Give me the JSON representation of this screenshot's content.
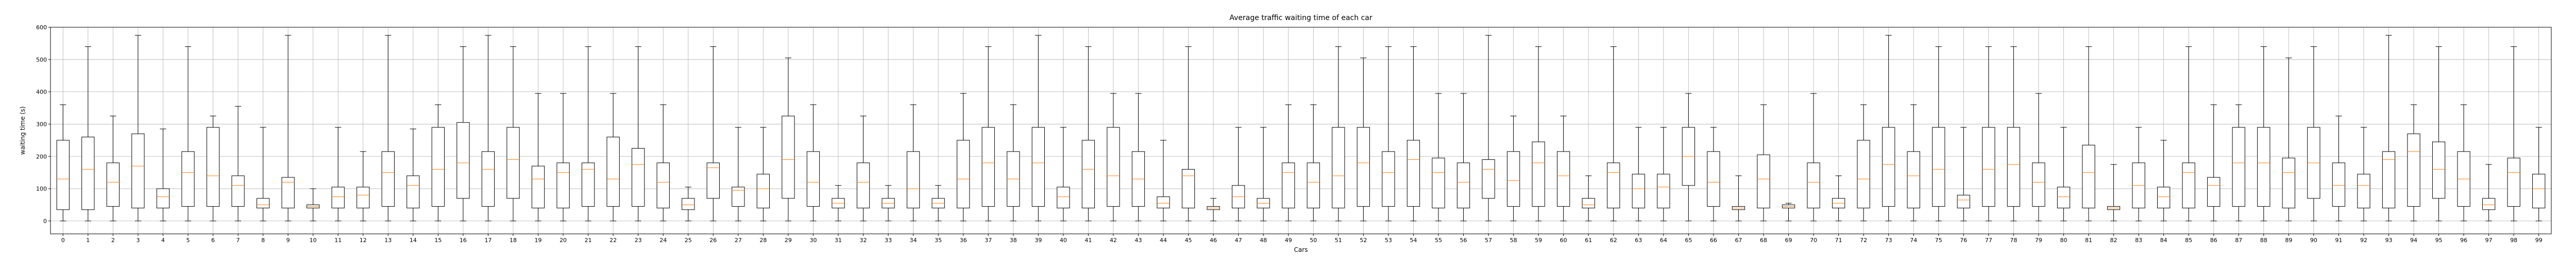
{
  "chart_data": {
    "type": "box",
    "title": "Average traffic waiting time of each car",
    "xlabel": "Cars",
    "ylabel": "waiting time (s)",
    "ylim": [
      -40,
      600
    ],
    "yticks": [
      0,
      100,
      200,
      300,
      400,
      500,
      600
    ],
    "grid": true,
    "colors": {
      "box": "#000000",
      "median": "#ff7f0e",
      "grid": "#b0b0b0"
    },
    "boxes": [
      {
        "label": "0",
        "whislo": 0,
        "q1": 35,
        "med": 130,
        "q3": 250,
        "whishi": 360
      },
      {
        "label": "1",
        "whislo": 0,
        "q1": 35,
        "med": 160,
        "q3": 260,
        "whishi": 540
      },
      {
        "label": "2",
        "whislo": 0,
        "q1": 45,
        "med": 120,
        "q3": 180,
        "whishi": 325
      },
      {
        "label": "3",
        "whislo": 0,
        "q1": 40,
        "med": 170,
        "q3": 270,
        "whishi": 575
      },
      {
        "label": "4",
        "whislo": 0,
        "q1": 40,
        "med": 75,
        "q3": 100,
        "whishi": 285
      },
      {
        "label": "5",
        "whislo": 0,
        "q1": 45,
        "med": 150,
        "q3": 215,
        "whishi": 540
      },
      {
        "label": "6",
        "whislo": 0,
        "q1": 45,
        "med": 140,
        "q3": 290,
        "whishi": 325
      },
      {
        "label": "7",
        "whislo": 0,
        "q1": 45,
        "med": 110,
        "q3": 140,
        "whishi": 355
      },
      {
        "label": "8",
        "whislo": 0,
        "q1": 40,
        "med": 50,
        "q3": 70,
        "whishi": 290
      },
      {
        "label": "9",
        "whislo": 0,
        "q1": 40,
        "med": 120,
        "q3": 135,
        "whishi": 575
      },
      {
        "label": "10",
        "whislo": 0,
        "q1": 40,
        "med": 45,
        "q3": 50,
        "whishi": 100
      },
      {
        "label": "11",
        "whislo": 0,
        "q1": 40,
        "med": 75,
        "q3": 105,
        "whishi": 290
      },
      {
        "label": "12",
        "whislo": 0,
        "q1": 40,
        "med": 80,
        "q3": 105,
        "whishi": 215
      },
      {
        "label": "13",
        "whislo": 0,
        "q1": 45,
        "med": 150,
        "q3": 215,
        "whishi": 575
      },
      {
        "label": "14",
        "whislo": 0,
        "q1": 40,
        "med": 110,
        "q3": 140,
        "whishi": 285
      },
      {
        "label": "15",
        "whislo": 0,
        "q1": 45,
        "med": 160,
        "q3": 290,
        "whishi": 360
      },
      {
        "label": "16",
        "whislo": 0,
        "q1": 70,
        "med": 180,
        "q3": 305,
        "whishi": 540
      },
      {
        "label": "17",
        "whislo": 0,
        "q1": 45,
        "med": 160,
        "q3": 215,
        "whishi": 575
      },
      {
        "label": "18",
        "whislo": 0,
        "q1": 70,
        "med": 190,
        "q3": 290,
        "whishi": 540
      },
      {
        "label": "19",
        "whislo": 0,
        "q1": 40,
        "med": 130,
        "q3": 170,
        "whishi": 395
      },
      {
        "label": "20",
        "whislo": 0,
        "q1": 40,
        "med": 150,
        "q3": 180,
        "whishi": 395
      },
      {
        "label": "21",
        "whislo": 0,
        "q1": 45,
        "med": 160,
        "q3": 180,
        "whishi": 540
      },
      {
        "label": "22",
        "whislo": 0,
        "q1": 45,
        "med": 130,
        "q3": 260,
        "whishi": 395
      },
      {
        "label": "23",
        "whislo": 0,
        "q1": 45,
        "med": 175,
        "q3": 225,
        "whishi": 540
      },
      {
        "label": "24",
        "whislo": 0,
        "q1": 40,
        "med": 120,
        "q3": 180,
        "whishi": 360
      },
      {
        "label": "25",
        "whislo": 0,
        "q1": 35,
        "med": 50,
        "q3": 70,
        "whishi": 105
      },
      {
        "label": "26",
        "whislo": 0,
        "q1": 70,
        "med": 165,
        "q3": 180,
        "whishi": 540
      },
      {
        "label": "27",
        "whislo": 0,
        "q1": 45,
        "med": 95,
        "q3": 105,
        "whishi": 290
      },
      {
        "label": "28",
        "whislo": 0,
        "q1": 40,
        "med": 100,
        "q3": 145,
        "whishi": 290
      },
      {
        "label": "29",
        "whislo": 0,
        "q1": 70,
        "med": 190,
        "q3": 325,
        "whishi": 505
      },
      {
        "label": "30",
        "whislo": 0,
        "q1": 45,
        "med": 120,
        "q3": 215,
        "whishi": 360
      },
      {
        "label": "31",
        "whislo": 0,
        "q1": 40,
        "med": 55,
        "q3": 70,
        "whishi": 110
      },
      {
        "label": "32",
        "whislo": 0,
        "q1": 40,
        "med": 120,
        "q3": 180,
        "whishi": 325
      },
      {
        "label": "33",
        "whislo": 0,
        "q1": 40,
        "med": 55,
        "q3": 70,
        "whishi": 110
      },
      {
        "label": "34",
        "whislo": 0,
        "q1": 40,
        "med": 100,
        "q3": 215,
        "whishi": 360
      },
      {
        "label": "35",
        "whislo": 0,
        "q1": 40,
        "med": 55,
        "q3": 70,
        "whishi": 110
      },
      {
        "label": "36",
        "whislo": 0,
        "q1": 40,
        "med": 130,
        "q3": 250,
        "whishi": 395
      },
      {
        "label": "37",
        "whislo": 0,
        "q1": 45,
        "med": 180,
        "q3": 290,
        "whishi": 540
      },
      {
        "label": "38",
        "whislo": 0,
        "q1": 45,
        "med": 130,
        "q3": 215,
        "whishi": 360
      },
      {
        "label": "39",
        "whislo": 0,
        "q1": 45,
        "med": 180,
        "q3": 290,
        "whishi": 575
      },
      {
        "label": "40",
        "whislo": 0,
        "q1": 40,
        "med": 75,
        "q3": 105,
        "whishi": 290
      },
      {
        "label": "41",
        "whislo": 0,
        "q1": 40,
        "med": 160,
        "q3": 250,
        "whishi": 540
      },
      {
        "label": "42",
        "whislo": 0,
        "q1": 45,
        "med": 140,
        "q3": 290,
        "whishi": 395
      },
      {
        "label": "43",
        "whislo": 0,
        "q1": 45,
        "med": 130,
        "q3": 215,
        "whishi": 395
      },
      {
        "label": "44",
        "whislo": 0,
        "q1": 40,
        "med": 55,
        "q3": 75,
        "whishi": 250
      },
      {
        "label": "45",
        "whislo": 0,
        "q1": 40,
        "med": 140,
        "q3": 160,
        "whishi": 540
      },
      {
        "label": "46",
        "whislo": 0,
        "q1": 35,
        "med": 40,
        "q3": 45,
        "whishi": 70
      },
      {
        "label": "47",
        "whislo": 0,
        "q1": 40,
        "med": 75,
        "q3": 110,
        "whishi": 290
      },
      {
        "label": "48",
        "whislo": 0,
        "q1": 40,
        "med": 55,
        "q3": 70,
        "whishi": 290
      },
      {
        "label": "49",
        "whislo": 0,
        "q1": 40,
        "med": 150,
        "q3": 180,
        "whishi": 360
      },
      {
        "label": "50",
        "whislo": 0,
        "q1": 40,
        "med": 120,
        "q3": 180,
        "whishi": 360
      },
      {
        "label": "51",
        "whislo": 0,
        "q1": 40,
        "med": 140,
        "q3": 290,
        "whishi": 540
      },
      {
        "label": "52",
        "whislo": 0,
        "q1": 45,
        "med": 180,
        "q3": 290,
        "whishi": 505
      },
      {
        "label": "53",
        "whislo": 0,
        "q1": 45,
        "med": 150,
        "q3": 215,
        "whishi": 540
      },
      {
        "label": "54",
        "whislo": 0,
        "q1": 45,
        "med": 190,
        "q3": 250,
        "whishi": 540
      },
      {
        "label": "55",
        "whislo": 0,
        "q1": 40,
        "med": 150,
        "q3": 195,
        "whishi": 395
      },
      {
        "label": "56",
        "whislo": 0,
        "q1": 40,
        "med": 120,
        "q3": 180,
        "whishi": 395
      },
      {
        "label": "57",
        "whislo": 0,
        "q1": 70,
        "med": 160,
        "q3": 190,
        "whishi": 575
      },
      {
        "label": "58",
        "whislo": 0,
        "q1": 45,
        "med": 125,
        "q3": 215,
        "whishi": 325
      },
      {
        "label": "59",
        "whislo": 0,
        "q1": 45,
        "med": 180,
        "q3": 245,
        "whishi": 540
      },
      {
        "label": "60",
        "whislo": 0,
        "q1": 45,
        "med": 140,
        "q3": 215,
        "whishi": 325
      },
      {
        "label": "61",
        "whislo": 0,
        "q1": 40,
        "med": 50,
        "q3": 70,
        "whishi": 140
      },
      {
        "label": "62",
        "whislo": 0,
        "q1": 40,
        "med": 150,
        "q3": 180,
        "whishi": 540
      },
      {
        "label": "63",
        "whislo": 0,
        "q1": 40,
        "med": 100,
        "q3": 145,
        "whishi": 290
      },
      {
        "label": "64",
        "whislo": 0,
        "q1": 40,
        "med": 105,
        "q3": 145,
        "whishi": 290
      },
      {
        "label": "65",
        "whislo": 0,
        "q1": 110,
        "med": 200,
        "q3": 290,
        "whishi": 395
      },
      {
        "label": "66",
        "whislo": 0,
        "q1": 45,
        "med": 120,
        "q3": 215,
        "whishi": 290
      },
      {
        "label": "67",
        "whislo": 0,
        "q1": 35,
        "med": 40,
        "q3": 45,
        "whishi": 140
      },
      {
        "label": "68",
        "whislo": 0,
        "q1": 40,
        "med": 130,
        "q3": 205,
        "whishi": 360
      },
      {
        "label": "69",
        "whislo": 0,
        "q1": 40,
        "med": 45,
        "q3": 50,
        "whishi": 55
      },
      {
        "label": "70",
        "whislo": 0,
        "q1": 40,
        "med": 120,
        "q3": 180,
        "whishi": 395
      },
      {
        "label": "71",
        "whislo": 0,
        "q1": 40,
        "med": 55,
        "q3": 70,
        "whishi": 140
      },
      {
        "label": "72",
        "whislo": 0,
        "q1": 40,
        "med": 130,
        "q3": 250,
        "whishi": 360
      },
      {
        "label": "73",
        "whislo": 0,
        "q1": 45,
        "med": 175,
        "q3": 290,
        "whishi": 575
      },
      {
        "label": "74",
        "whislo": 0,
        "q1": 40,
        "med": 140,
        "q3": 215,
        "whishi": 360
      },
      {
        "label": "75",
        "whislo": 0,
        "q1": 45,
        "med": 160,
        "q3": 290,
        "whishi": 540
      },
      {
        "label": "76",
        "whislo": 0,
        "q1": 40,
        "med": 65,
        "q3": 80,
        "whishi": 290
      },
      {
        "label": "77",
        "whislo": 0,
        "q1": 45,
        "med": 160,
        "q3": 290,
        "whishi": 540
      },
      {
        "label": "78",
        "whislo": 0,
        "q1": 45,
        "med": 175,
        "q3": 290,
        "whishi": 540
      },
      {
        "label": "79",
        "whislo": 0,
        "q1": 45,
        "med": 120,
        "q3": 180,
        "whishi": 395
      },
      {
        "label": "80",
        "whislo": 0,
        "q1": 40,
        "med": 75,
        "q3": 105,
        "whishi": 290
      },
      {
        "label": "81",
        "whislo": 0,
        "q1": 40,
        "med": 150,
        "q3": 235,
        "whishi": 540
      },
      {
        "label": "82",
        "whislo": 0,
        "q1": 35,
        "med": 40,
        "q3": 45,
        "whishi": 175
      },
      {
        "label": "83",
        "whislo": 0,
        "q1": 40,
        "med": 110,
        "q3": 180,
        "whishi": 290
      },
      {
        "label": "84",
        "whislo": 0,
        "q1": 40,
        "med": 75,
        "q3": 105,
        "whishi": 250
      },
      {
        "label": "85",
        "whislo": 0,
        "q1": 40,
        "med": 150,
        "q3": 180,
        "whishi": 540
      },
      {
        "label": "86",
        "whislo": 0,
        "q1": 45,
        "med": 110,
        "q3": 135,
        "whishi": 360
      },
      {
        "label": "87",
        "whislo": 0,
        "q1": 45,
        "med": 180,
        "q3": 290,
        "whishi": 360
      },
      {
        "label": "88",
        "whislo": 0,
        "q1": 45,
        "med": 180,
        "q3": 290,
        "whishi": 540
      },
      {
        "label": "89",
        "whislo": 0,
        "q1": 40,
        "med": 150,
        "q3": 195,
        "whishi": 505
      },
      {
        "label": "90",
        "whislo": 0,
        "q1": 70,
        "med": 180,
        "q3": 290,
        "whishi": 540
      },
      {
        "label": "91",
        "whislo": 0,
        "q1": 45,
        "med": 110,
        "q3": 180,
        "whishi": 325
      },
      {
        "label": "92",
        "whislo": 0,
        "q1": 40,
        "med": 110,
        "q3": 145,
        "whishi": 290
      },
      {
        "label": "93",
        "whislo": 0,
        "q1": 40,
        "med": 190,
        "q3": 215,
        "whishi": 575
      },
      {
        "label": "94",
        "whislo": 0,
        "q1": 45,
        "med": 215,
        "q3": 270,
        "whishi": 360
      },
      {
        "label": "95",
        "whislo": 0,
        "q1": 70,
        "med": 160,
        "q3": 245,
        "whishi": 540
      },
      {
        "label": "96",
        "whislo": 0,
        "q1": 45,
        "med": 130,
        "q3": 215,
        "whishi": 360
      },
      {
        "label": "97",
        "whislo": 0,
        "q1": 35,
        "med": 50,
        "q3": 70,
        "whishi": 175
      },
      {
        "label": "98",
        "whislo": 0,
        "q1": 45,
        "med": 150,
        "q3": 195,
        "whishi": 540
      },
      {
        "label": "99",
        "whislo": 0,
        "q1": 40,
        "med": 100,
        "q3": 145,
        "whishi": 290
      }
    ]
  }
}
